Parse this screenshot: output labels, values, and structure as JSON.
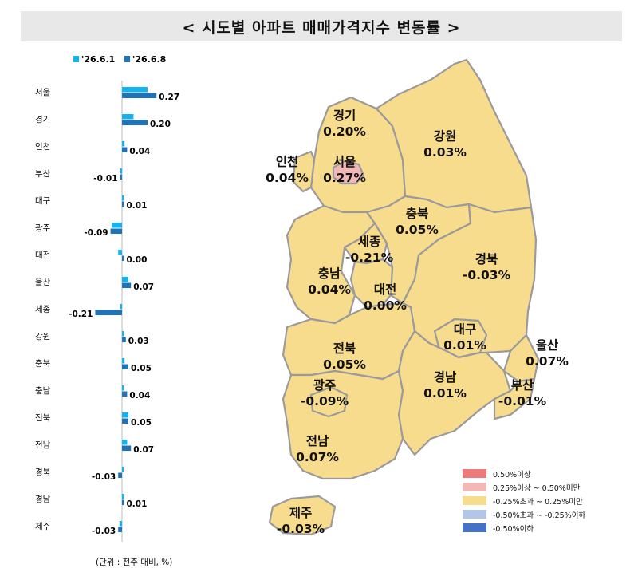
{
  "title": "< 시도별 아파트 매매가격지수 변동률 >",
  "unit_note": "(단위 : 전주 대비, %)",
  "colors": {
    "prev": "#12b4ef",
    "curr": "#1f73b9",
    "map_fill": "#f7dc8e",
    "map_highlight": "#f2b8b8",
    "map_border": "#9a9a9a"
  },
  "chart_data": {
    "type": "bar",
    "orientation": "horizontal",
    "categories": [
      "서울",
      "경기",
      "인천",
      "부산",
      "대구",
      "광주",
      "대전",
      "울산",
      "세종",
      "강원",
      "충북",
      "충남",
      "전북",
      "전남",
      "경북",
      "경남",
      "제주"
    ],
    "series": [
      {
        "name": "'26.6.1",
        "values": [
          0.2,
          0.09,
          0.02,
          -0.01,
          0.01,
          -0.08,
          -0.03,
          0.05,
          -0.01,
          0.0,
          0.02,
          0.01,
          0.05,
          0.04,
          0.0,
          0.0,
          -0.02
        ]
      },
      {
        "name": "'26.6.8",
        "values": [
          0.27,
          0.2,
          0.04,
          -0.01,
          0.01,
          -0.09,
          0.0,
          0.07,
          -0.21,
          0.03,
          0.05,
          0.04,
          0.05,
          0.07,
          -0.03,
          0.01,
          -0.03
        ]
      }
    ],
    "data_labels": [
      "0.27",
      "0.20",
      "0.04",
      "-0.01",
      "0.01",
      "-0.09",
      "0.00",
      "0.07",
      "-0.21",
      "0.03",
      "0.05",
      "0.04",
      "0.05",
      "0.07",
      "-0.03",
      "0.01",
      "-0.03"
    ],
    "legend_position": "top"
  },
  "map": {
    "regions": [
      {
        "name": "경기",
        "value": "0.20%"
      },
      {
        "name": "강원",
        "value": "0.03%"
      },
      {
        "name": "인천",
        "value": "0.04%"
      },
      {
        "name": "서울",
        "value": "0.27%"
      },
      {
        "name": "충북",
        "value": "0.05%"
      },
      {
        "name": "세종",
        "value": "-0.21%"
      },
      {
        "name": "충남",
        "value": "0.04%"
      },
      {
        "name": "대전",
        "value": "0.00%"
      },
      {
        "name": "경북",
        "value": "-0.03%"
      },
      {
        "name": "대구",
        "value": "0.01%"
      },
      {
        "name": "울산",
        "value": "0.07%"
      },
      {
        "name": "전북",
        "value": "0.05%"
      },
      {
        "name": "광주",
        "value": "-0.09%"
      },
      {
        "name": "경남",
        "value": "0.01%"
      },
      {
        "name": "부산",
        "value": "-0.01%"
      },
      {
        "name": "전남",
        "value": "0.07%"
      },
      {
        "name": "제주",
        "value": "-0.03%"
      }
    ]
  },
  "legend": [
    {
      "label": "0.50%이상",
      "color": "#ee7b7b"
    },
    {
      "label": "0.25%이상 ~ 0.50%미만",
      "color": "#f2b8b8"
    },
    {
      "label": "-0.25%초과 ~ 0.25%미만",
      "color": "#f7dc8e"
    },
    {
      "label": "-0.50%초과 ~ -0.25%이하",
      "color": "#b4c6e7"
    },
    {
      "label": "-0.50%이하",
      "color": "#4472c4"
    }
  ]
}
